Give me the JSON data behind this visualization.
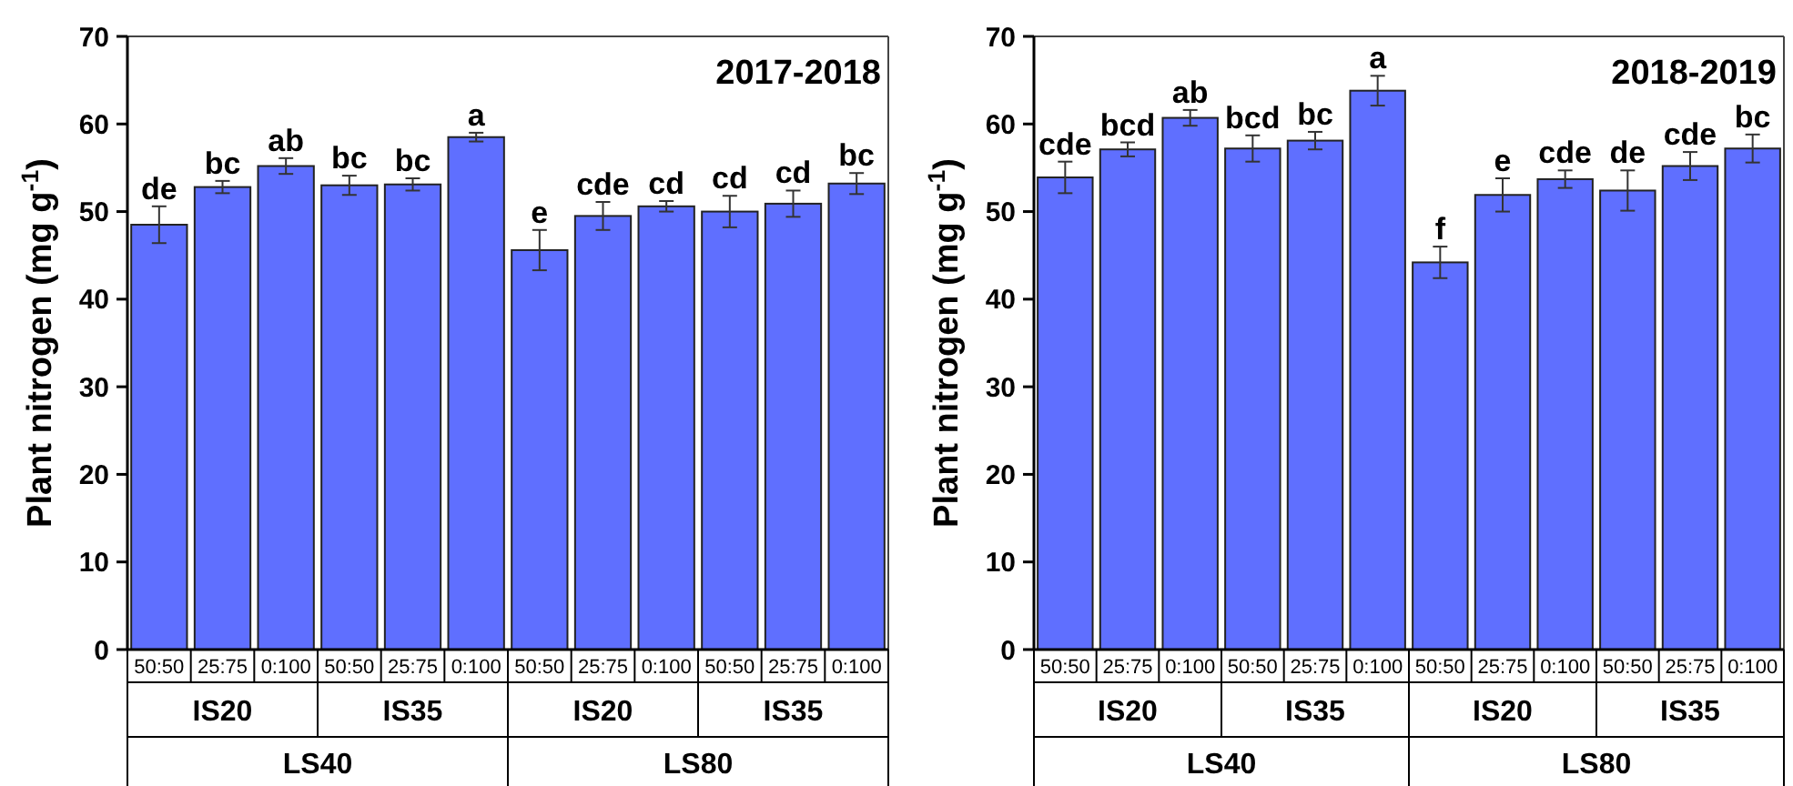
{
  "chart_data": [
    {
      "type": "bar",
      "title": "2017-2018",
      "ylabel": "Plant nitrogen (mg g$^{-1}$)",
      "categories": [
        "50:50",
        "25:75",
        "0:100",
        "50:50",
        "25:75",
        "0:100",
        "50:50",
        "25:75",
        "0:100",
        "50:50",
        "25:75",
        "0:100"
      ],
      "values": [
        48.5,
        52.8,
        55.2,
        53.0,
        53.1,
        58.5,
        45.6,
        49.5,
        50.6,
        50.0,
        50.9,
        53.2
      ],
      "errors": [
        2.1,
        0.7,
        0.9,
        1.1,
        0.7,
        0.5,
        2.3,
        1.6,
        0.6,
        1.8,
        1.5,
        1.2
      ],
      "value_labels": [
        "de",
        "bc",
        "ab",
        "bc",
        "bc",
        "a",
        "e",
        "cde",
        "cd",
        "cd",
        "cd",
        "bc"
      ],
      "color": "#5f6fff",
      "ylim": [
        0,
        70
      ],
      "yticks": [
        0,
        10,
        20,
        30,
        40,
        50,
        60,
        70
      ],
      "annotations": [
        "IS20",
        "IS35",
        "IS20",
        "IS35",
        "LS40",
        "LS80"
      ]
    },
    {
      "type": "bar",
      "title": "2018-2019",
      "ylabel": "Plant nitrogen (mg g$^{-1}$)",
      "categories": [
        "50:50",
        "25:75",
        "0:100",
        "50:50",
        "25:75",
        "0:100",
        "50:50",
        "25:75",
        "0:100",
        "50:50",
        "25:75",
        "0:100"
      ],
      "values": [
        53.9,
        57.1,
        60.7,
        57.2,
        58.1,
        63.8,
        44.2,
        51.9,
        53.7,
        52.4,
        55.2,
        57.2
      ],
      "errors": [
        1.8,
        0.8,
        0.9,
        1.5,
        1.0,
        1.7,
        1.8,
        1.9,
        1.0,
        2.3,
        1.6,
        1.6
      ],
      "value_labels": [
        "cde",
        "bcd",
        "ab",
        "bcd",
        "bc",
        "a",
        "f",
        "e",
        "cde",
        "de",
        "cde",
        "bc"
      ],
      "color": "#5f6fff",
      "ylim": [
        0,
        70
      ],
      "yticks": [
        0,
        10,
        20,
        30,
        40,
        50,
        60,
        70
      ],
      "annotations": [
        "IS20",
        "IS35",
        "IS20",
        "IS35",
        "LS40",
        "LS80"
      ]
    }
  ]
}
